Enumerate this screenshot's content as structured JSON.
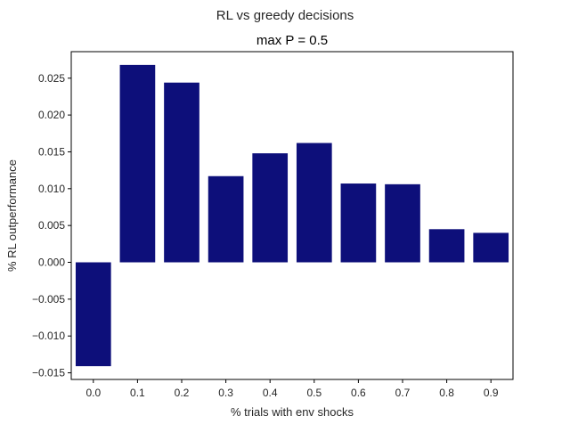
{
  "suptitle": "RL vs greedy decisions",
  "chart_data": {
    "type": "bar",
    "title": "max P = 0.5",
    "xlabel": "% trials with env shocks",
    "ylabel": "% RL outperformance",
    "categories": [
      "0.0",
      "0.1",
      "0.2",
      "0.3",
      "0.4",
      "0.5",
      "0.6",
      "0.7",
      "0.8",
      "0.9"
    ],
    "values": [
      -0.0141,
      0.0268,
      0.0244,
      0.0117,
      0.0148,
      0.0162,
      0.0107,
      0.0106,
      0.0045,
      0.004
    ],
    "ylim": [
      -0.0159,
      0.0286
    ],
    "yticks": [
      -0.015,
      -0.01,
      -0.005,
      0.0,
      0.005,
      0.01,
      0.015,
      0.02,
      0.025
    ],
    "ytick_labels": [
      "−0.015",
      "−0.010",
      "−0.005",
      "0.000",
      "0.005",
      "0.010",
      "0.015",
      "0.020",
      "0.025"
    ],
    "bar_color": "#0d0f7a",
    "grid": false,
    "legend": "none"
  }
}
